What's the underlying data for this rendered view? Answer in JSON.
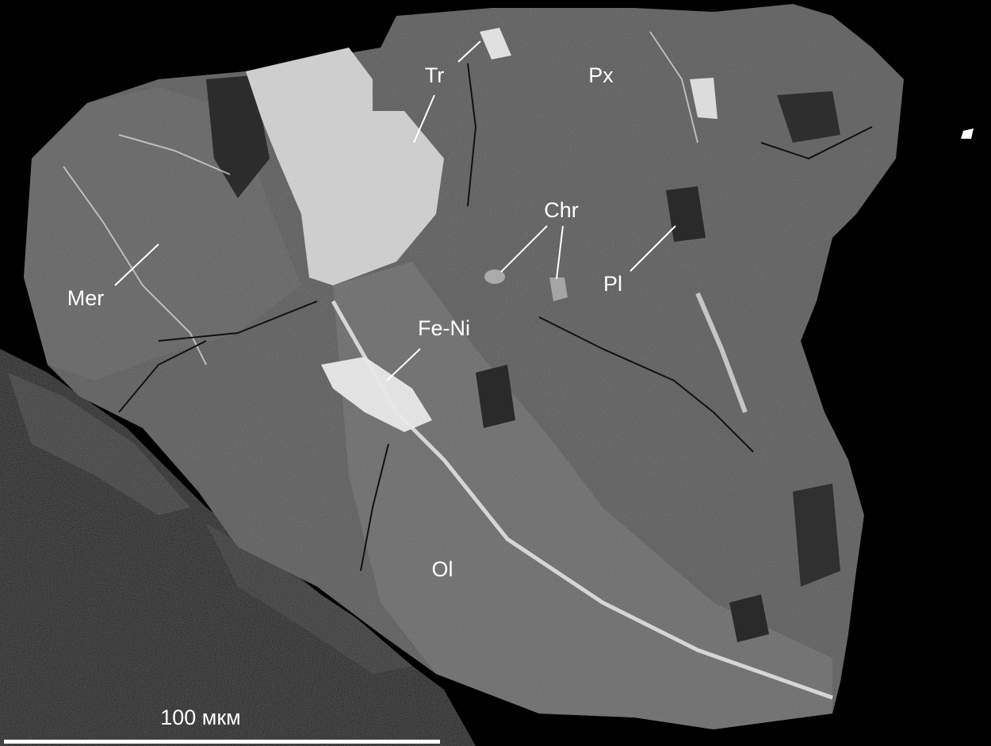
{
  "labels": [
    {
      "text": "Tr"
    },
    {
      "text": "Px"
    },
    {
      "text": "Chr"
    },
    {
      "text": "Pl"
    },
    {
      "text": "Mer"
    },
    {
      "text": "Fe-Ni"
    },
    {
      "text": "Ol"
    }
  ],
  "scale_bar": {
    "label": "100 мкм"
  }
}
